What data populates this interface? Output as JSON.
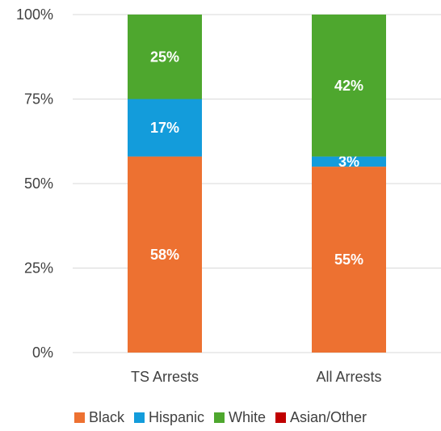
{
  "chart_data": {
    "type": "bar",
    "stacked": true,
    "categories": [
      "TS Arrests",
      "All Arrests"
    ],
    "series": [
      {
        "name": "Black",
        "color": "#ED7131",
        "values": [
          58,
          55
        ],
        "labels": [
          "58%",
          "55%"
        ]
      },
      {
        "name": "Hispanic",
        "color": "#139CDB",
        "values": [
          17,
          3
        ],
        "labels": [
          "17%",
          "3%"
        ]
      },
      {
        "name": "White",
        "color": "#4EA72E",
        "values": [
          25,
          42
        ],
        "labels": [
          "25%",
          "42%"
        ]
      },
      {
        "name": "Asian/Other",
        "color": "#C00000",
        "values": [
          0,
          0
        ],
        "labels": [
          "",
          ""
        ]
      }
    ],
    "yticks": [
      "0%",
      "25%",
      "50%",
      "75%",
      "100%"
    ],
    "ylim": [
      0,
      100
    ],
    "grid": true,
    "legend_position": "bottom"
  }
}
